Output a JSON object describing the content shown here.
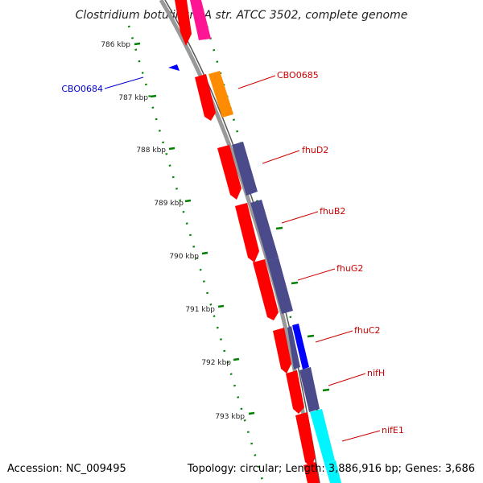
{
  "title": "Clostridium botulinum A str. ATCC 3502, complete genome",
  "footer": {
    "accession": "Accession: NC_009495",
    "summary": "Topology: circular; Length: 3,886,916 bp; Genes: 3,686"
  },
  "ruler": {
    "ticks": [
      "786 kbp",
      "787 kbp",
      "788 kbp",
      "789 kbp",
      "790 kbp",
      "791 kbp",
      "792 kbp",
      "793 kbp"
    ],
    "color": "#008000"
  },
  "genes": [
    {
      "name": "CBO0684",
      "color": "#0000cc"
    },
    {
      "name": "CBO0685",
      "color": "#cc0000"
    },
    {
      "name": "fhuD2",
      "color": "#cc0000"
    },
    {
      "name": "fhuB2",
      "color": "#cc0000"
    },
    {
      "name": "fhuG2",
      "color": "#cc0000"
    },
    {
      "name": "fhuC2",
      "color": "#cc0000"
    },
    {
      "name": "nifH",
      "color": "#cc0000"
    },
    {
      "name": "nifE1",
      "color": "#cc0000"
    }
  ],
  "colors": {
    "cds": "#ff0000",
    "cog_orange": "#ff8c00",
    "cog_purple": "#4b4b8c",
    "cog_blue": "#0000ff",
    "cog_cyan": "#00f5ff",
    "cog_pink": "#ff1493",
    "backbone": "#999999"
  }
}
